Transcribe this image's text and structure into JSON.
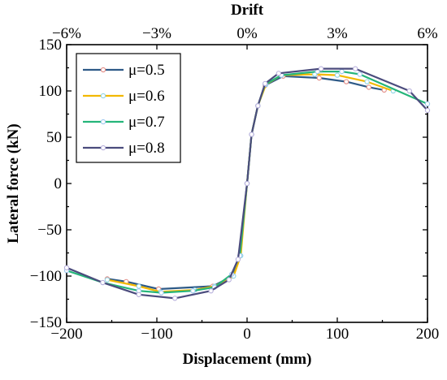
{
  "chart_data": {
    "type": "line",
    "title": "",
    "xlabel": "Displacement (mm)",
    "ylabel": "Lateral force (kN)",
    "x2label": "Drift",
    "xlim": [
      -200,
      200
    ],
    "ylim": [
      -150,
      150
    ],
    "x_ticks": [
      -200,
      -100,
      0,
      100,
      200
    ],
    "x_tick_labels": [
      "−200",
      "−100",
      "0",
      "100",
      "200"
    ],
    "y_ticks": [
      -150,
      -100,
      -50,
      0,
      50,
      100,
      150
    ],
    "y_tick_labels": [
      "−150",
      "−100",
      "−50",
      "0",
      "50",
      "100",
      "150"
    ],
    "x2_ticks": [
      -6,
      -3,
      0,
      3,
      6
    ],
    "x2_tick_labels": [
      "−6%",
      "−3%",
      "0%",
      "3%",
      "6%"
    ],
    "grid": false,
    "legend_position": "top-left",
    "series": [
      {
        "name": "μ=0.5",
        "color": "#2e5a87",
        "marker_color": "#e38b84",
        "x": [
          -155,
          -134,
          -98,
          -38,
          -16,
          -8,
          0,
          5,
          12,
          20,
          40,
          80,
          110,
          135,
          152
        ],
        "y": [
          -103,
          -106,
          -114,
          -111,
          -100,
          -78,
          0,
          53,
          84,
          106,
          116,
          114,
          110,
          104,
          101
        ]
      },
      {
        "name": "μ=0.6",
        "color": "#f2b800",
        "marker_color": "#8fd4e4",
        "x": [
          -155,
          -120,
          -96,
          -58,
          -36,
          -15,
          -7,
          0,
          5,
          12,
          21,
          38,
          75,
          100,
          133,
          162
        ],
        "y": [
          -104,
          -111,
          -117,
          -115,
          -111,
          -100,
          -78,
          0,
          53,
          84,
          107,
          117,
          118,
          117,
          110,
          100
        ]
      },
      {
        "name": "μ=0.7",
        "color": "#25b57a",
        "marker_color": "#9fc9ef",
        "x": [
          -200,
          -160,
          -120,
          -95,
          -60,
          -36,
          -17,
          -8,
          0,
          5,
          12,
          20,
          38,
          78,
          105,
          125,
          200
        ],
        "y": [
          -94,
          -107,
          -116,
          -118,
          -116,
          -112,
          -98,
          -78,
          0,
          53,
          84,
          107,
          117,
          121,
          121,
          118,
          86
        ]
      },
      {
        "name": "μ=0.8",
        "color": "#4b4c7d",
        "marker_color": "#b8b0dc",
        "x": [
          -200,
          -160,
          -120,
          -80,
          -40,
          -20,
          -10,
          0,
          5,
          12,
          20,
          35,
          82,
          120,
          180,
          200
        ],
        "y": [
          -91,
          -107,
          -120,
          -124,
          -116,
          -104,
          -82,
          0,
          53,
          84,
          108,
          119,
          124,
          124,
          100,
          79
        ]
      }
    ]
  }
}
